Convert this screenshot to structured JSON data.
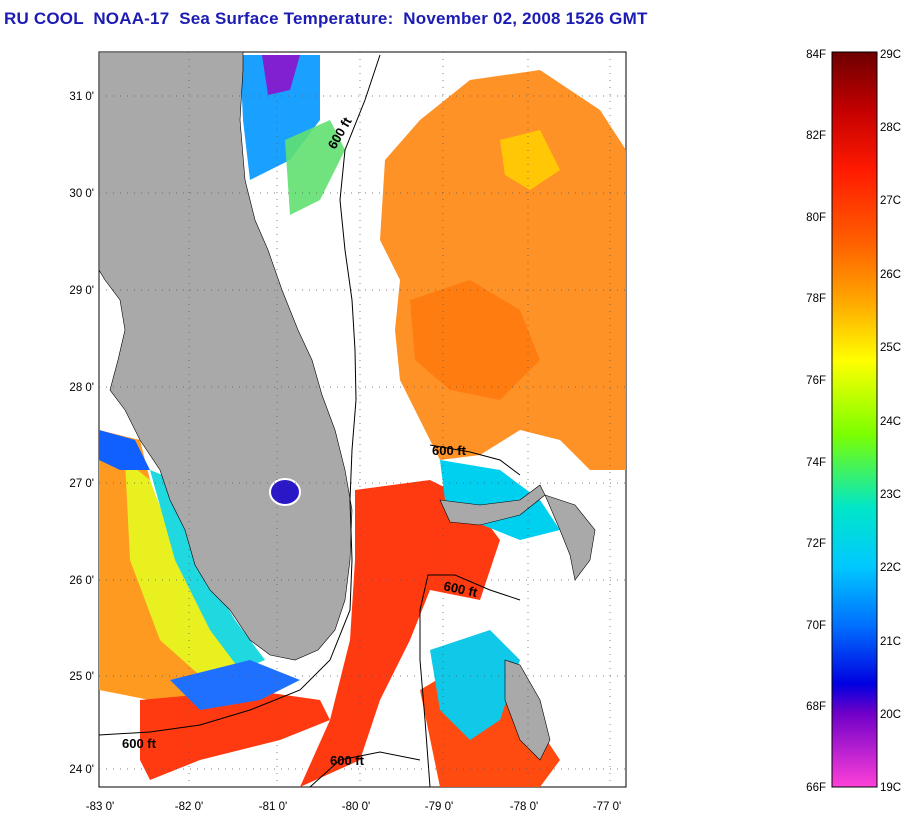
{
  "title": "RU COOL  NOAA-17  Sea Surface Temperature:  November 02, 2008 1526 GMT",
  "map": {
    "lon_ticks": [
      "-83 0'",
      "-82 0'",
      "-81 0'",
      "-80 0'",
      "-79 0'",
      "-78 0'",
      "-77 0'"
    ],
    "lat_ticks": [
      "31 0'",
      "30 0'",
      "29 0'",
      "28 0'",
      "27 0'",
      "26 0'",
      "25 0'",
      "24 0'"
    ],
    "contour_labels": [
      "600 ft",
      "600 ft",
      "600 ft",
      "600 ft",
      "600 ft"
    ],
    "colors": {
      "land": "#a9a9a9",
      "cloud_nodata": "#ffffff",
      "contour": "#000000"
    }
  },
  "colorbar": {
    "fahrenheit_labels": [
      "84F",
      "82F",
      "80F",
      "78F",
      "76F",
      "74F",
      "72F",
      "70F",
      "68F",
      "66F"
    ],
    "celsius_labels": [
      "29C",
      "28C",
      "27C",
      "26C",
      "25C",
      "24C",
      "23C",
      "22C",
      "21C",
      "20C",
      "19C"
    ],
    "gradient": [
      "#7a0000",
      "#c80000",
      "#ff2000",
      "#ff6a00",
      "#ffb000",
      "#ffff00",
      "#80ff00",
      "#20e060",
      "#00e0e0",
      "#00a0ff",
      "#0030ff",
      "#0000d0",
      "#8000c0",
      "#ff40d0"
    ]
  }
}
